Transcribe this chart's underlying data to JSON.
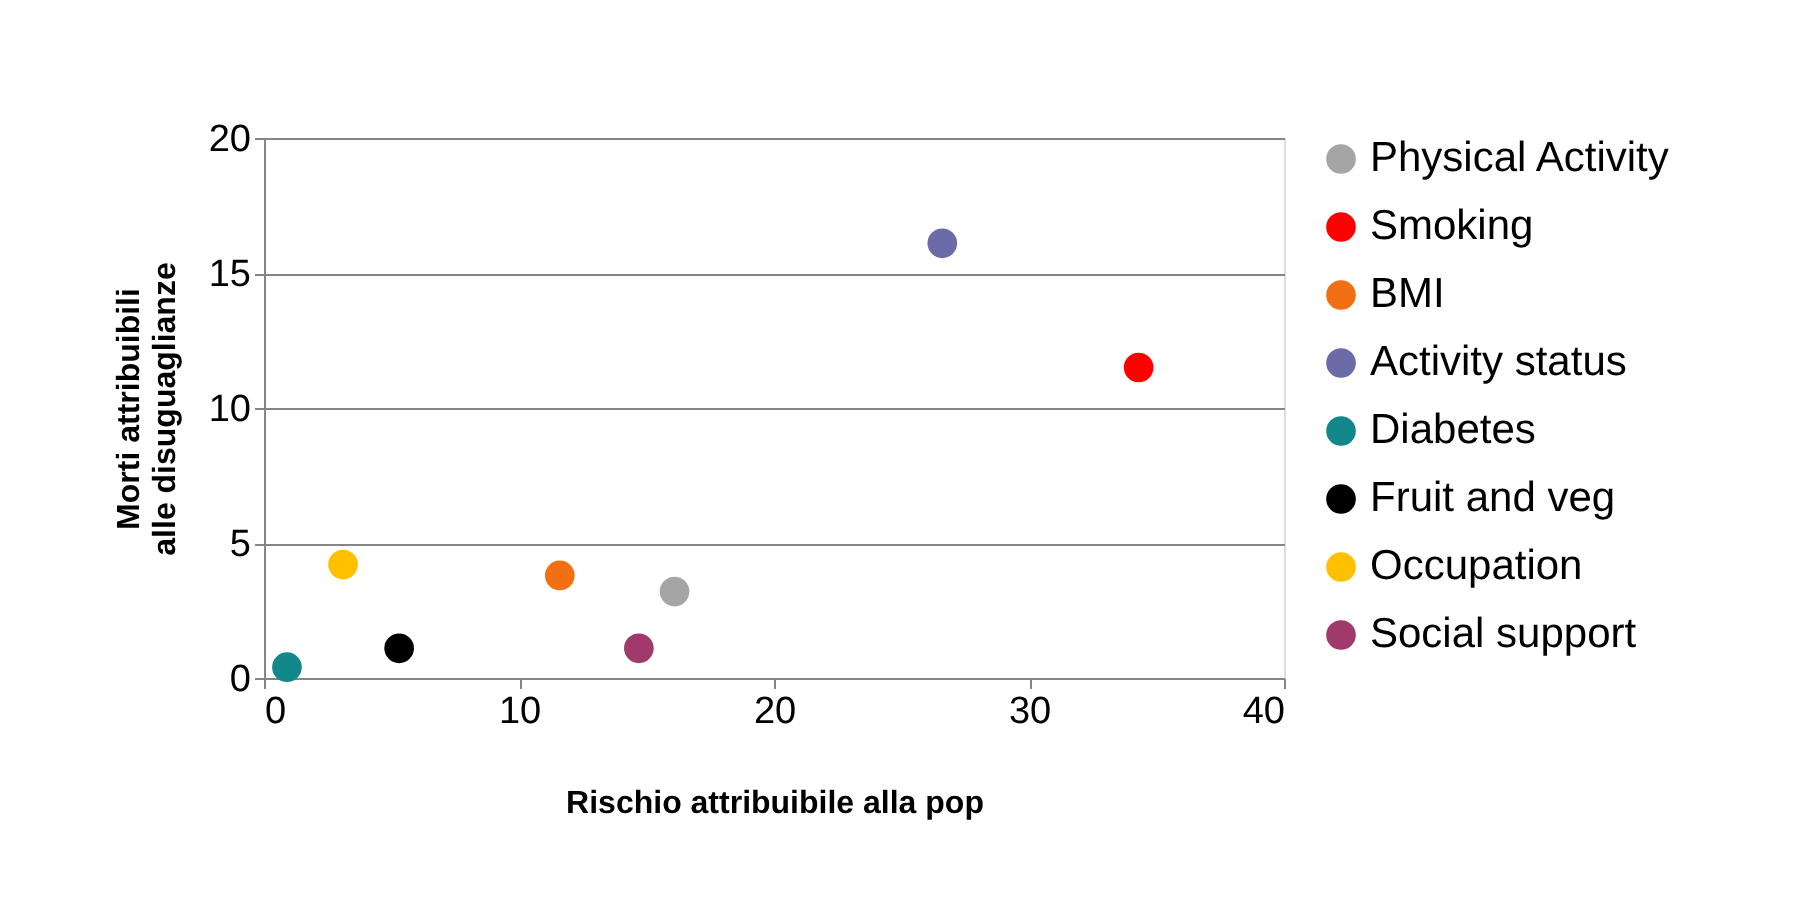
{
  "chart_data": {
    "type": "scatter",
    "xlabel": "Rischio attribuibile alla pop",
    "ylabel": "Morti attribuibili alle disuguaglianze",
    "xlim": [
      0,
      40
    ],
    "xticks": [
      0,
      10,
      20,
      30,
      40
    ],
    "ylim": [
      0,
      20
    ],
    "yticks": [
      0,
      5,
      10,
      15,
      20
    ],
    "grid": "y",
    "legend": "right",
    "marker": "circle",
    "series": [
      {
        "name": "Physical Activity",
        "color": "#a5a5a5",
        "x": [
          16.1
        ],
        "values": [
          3.2
        ]
      },
      {
        "name": "Smoking",
        "color": "#ff0000",
        "x": [
          34.3
        ],
        "values": [
          11.5
        ]
      },
      {
        "name": "BMI",
        "color": "#f36f13",
        "x": [
          11.6
        ],
        "values": [
          3.8
        ]
      },
      {
        "name": "Activity status",
        "color": "#6b6ba8",
        "x": [
          26.6
        ],
        "values": [
          16.1
        ]
      },
      {
        "name": "Diabetes",
        "color": "#12888a",
        "x": [
          0.9
        ],
        "values": [
          0.4
        ]
      },
      {
        "name": "Fruit and veg",
        "color": "#000000",
        "x": [
          5.3
        ],
        "values": [
          1.1
        ]
      },
      {
        "name": "Occupation",
        "color": "#ffc000",
        "x": [
          3.1
        ],
        "values": [
          4.2
        ]
      },
      {
        "name": "Social support",
        "color": "#a03a6a",
        "x": [
          14.7
        ],
        "values": [
          1.1
        ]
      }
    ]
  }
}
